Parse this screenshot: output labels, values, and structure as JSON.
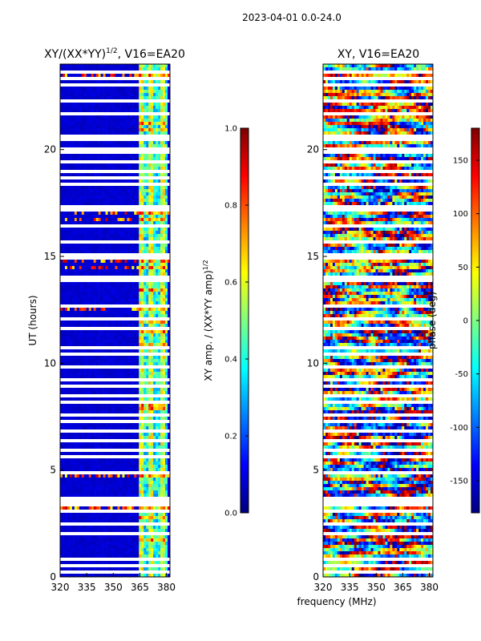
{
  "page": {
    "suptitle": "2023-04-01 0.0-24.0",
    "xlabel": "frequency (MHz)"
  },
  "colormap": {
    "name": "jet",
    "stops": [
      "#00007f",
      "#0000ff",
      "#007fff",
      "#00ffff",
      "#7fff7f",
      "#ffff00",
      "#ff7f00",
      "#ff0000",
      "#7f0000"
    ]
  },
  "chart_data": [
    {
      "type": "heatmap",
      "title_main": "XY/(XX*YY)",
      "title_sup": "1/2",
      "title_tail": ", V16=EA20",
      "xlabel": "",
      "ylabel": "UT (hours)",
      "xlim": [
        320,
        382
      ],
      "ylim": [
        0,
        24
      ],
      "xticks": [
        320,
        335,
        350,
        365,
        380
      ],
      "yticks": [
        0,
        5,
        10,
        15,
        20
      ],
      "rfi_band_mhz": [
        364,
        380
      ],
      "colorbar": {
        "label_main": "XY amp. / (XX*YY amp)",
        "label_sup": "1/2",
        "lim": [
          0.0,
          1.0
        ],
        "ticks": [
          "0.0",
          "0.2",
          "0.4",
          "0.6",
          "0.8",
          "1.0"
        ]
      }
    },
    {
      "type": "heatmap",
      "title_main": "XY, V16=EA20",
      "xlabel": "",
      "ylabel": "",
      "xlim": [
        320,
        382
      ],
      "ylim": [
        0,
        24
      ],
      "xticks": [
        320,
        335,
        350,
        365,
        380
      ],
      "yticks": [
        0,
        5,
        10,
        15,
        20
      ],
      "colorbar": {
        "label_main": "phase (deg)",
        "lim": [
          -180,
          180
        ],
        "ticks": [
          "-150",
          "-100",
          "-50",
          "0",
          "50",
          "100",
          "150"
        ]
      }
    }
  ]
}
